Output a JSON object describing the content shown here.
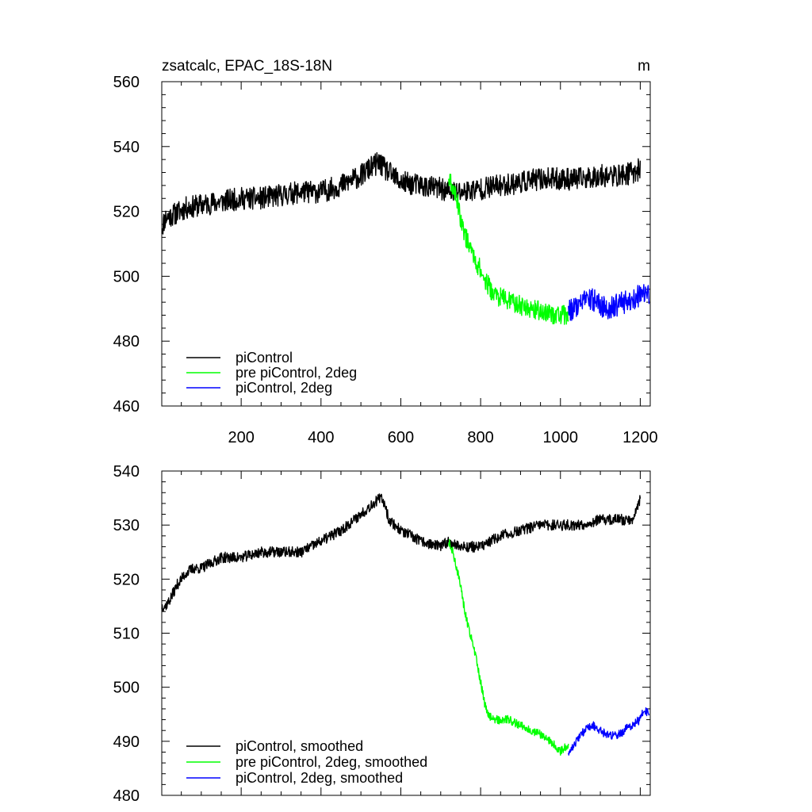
{
  "chart_data": [
    {
      "type": "line",
      "title": "zsatcalc, EPAC_18S-18N",
      "units": "m",
      "xlim": [
        1,
        1225
      ],
      "ylim": [
        460,
        560
      ],
      "x_ticks": [
        200,
        400,
        600,
        800,
        1000,
        1200
      ],
      "y_ticks": [
        460,
        480,
        500,
        520,
        540,
        560
      ],
      "x_tick_labels": [
        "200",
        "400",
        "600",
        "800",
        "1000",
        "1200"
      ],
      "y_tick_labels": [
        "460",
        "480",
        "500",
        "520",
        "540",
        "560"
      ],
      "legend_position": "bottom-left",
      "series": [
        {
          "name": "piControl",
          "color": "#000000",
          "noise": 3.5,
          "x": [
            1,
            10,
            30,
            60,
            100,
            150,
            200,
            250,
            300,
            350,
            400,
            450,
            500,
            530,
            545,
            560,
            580,
            600,
            650,
            700,
            720,
            750,
            800,
            850,
            900,
            950,
            1000,
            1050,
            1100,
            1150,
            1180,
            1200
          ],
          "y": [
            515,
            518,
            519,
            521,
            522,
            523,
            524,
            524,
            525,
            526,
            526,
            528,
            531,
            534,
            535,
            533,
            531,
            529,
            528,
            527,
            526,
            526,
            527,
            528,
            529,
            530,
            530,
            530,
            531,
            531,
            532,
            533
          ]
        },
        {
          "name": "pre piControl, 2deg",
          "color": "#00ff00",
          "noise": 3.0,
          "x": [
            720,
            730,
            740,
            750,
            760,
            770,
            780,
            790,
            800,
            810,
            820,
            830,
            840,
            860,
            880,
            900,
            930,
            960,
            990,
            1020
          ],
          "y": [
            530,
            527,
            524,
            518,
            513,
            510,
            507,
            504,
            502,
            499,
            497,
            495,
            494,
            493,
            492,
            491,
            490,
            489,
            488,
            488
          ]
        },
        {
          "name": "piControl, 2deg",
          "color": "#0000ff",
          "noise": 3.5,
          "x": [
            1020,
            1040,
            1060,
            1080,
            1100,
            1120,
            1140,
            1160,
            1180,
            1200,
            1222
          ],
          "y": [
            489,
            491,
            492,
            493,
            491,
            490,
            491,
            492,
            493,
            494,
            494
          ]
        }
      ]
    },
    {
      "type": "line",
      "title": "",
      "xlim": [
        1,
        1225
      ],
      "ylim": [
        480,
        540
      ],
      "x_ticks": [
        200,
        400,
        600,
        800,
        1000,
        1200
      ],
      "y_ticks": [
        480,
        490,
        500,
        510,
        520,
        530,
        540
      ],
      "y_tick_labels": [
        "480",
        "490",
        "500",
        "510",
        "520",
        "530",
        "540"
      ],
      "legend_position": "bottom-left",
      "series": [
        {
          "name": "piControl, smoothed",
          "color": "#000000",
          "noise": 1.0,
          "x": [
            1,
            10,
            20,
            40,
            60,
            80,
            100,
            150,
            200,
            250,
            300,
            350,
            400,
            450,
            500,
            530,
            550,
            560,
            570,
            600,
            650,
            700,
            720,
            750,
            800,
            850,
            900,
            950,
            1000,
            1050,
            1100,
            1150,
            1180,
            1190,
            1200
          ],
          "y": [
            515,
            515,
            516,
            519,
            521,
            522,
            522,
            524,
            524,
            525,
            525,
            525,
            527,
            529,
            532,
            534,
            535,
            534,
            531,
            529,
            527,
            526,
            527,
            526,
            526,
            528,
            529,
            530,
            530,
            530,
            531,
            531,
            531,
            533,
            535
          ]
        },
        {
          "name": "pre piControl, 2deg, smoothed",
          "color": "#00ff00",
          "noise": 0.8,
          "x": [
            720,
            730,
            740,
            750,
            760,
            770,
            780,
            790,
            800,
            810,
            820,
            830,
            850,
            870,
            900,
            930,
            960,
            990,
            1000,
            1010,
            1020
          ],
          "y": [
            527,
            525,
            522,
            519,
            514,
            511,
            508,
            505,
            501,
            497,
            495,
            494,
            494,
            494,
            493,
            492,
            491,
            489,
            488,
            489,
            489
          ]
        },
        {
          "name": "piControl, 2deg, smoothed",
          "color": "#0000ff",
          "noise": 0.8,
          "x": [
            1020,
            1040,
            1060,
            1080,
            1100,
            1120,
            1140,
            1160,
            1180,
            1200,
            1210,
            1222
          ],
          "y": [
            488,
            490,
            492,
            493,
            492,
            491,
            491,
            492,
            493,
            494,
            496,
            495
          ]
        }
      ]
    }
  ]
}
